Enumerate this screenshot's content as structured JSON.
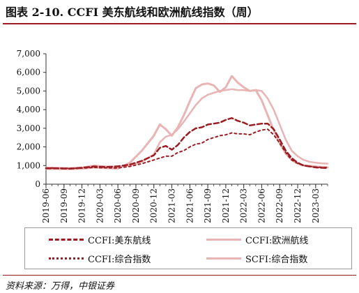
{
  "figure": {
    "title": "图表 2-10. CCFI 美东航线和欧洲航线指数（周）",
    "source": "资料来源：万得，中银证券"
  },
  "chart_data": {
    "type": "line",
    "ylim": [
      0,
      7000
    ],
    "yticks": [
      "0",
      "1,000",
      "2,000",
      "3,000",
      "4,000",
      "5,000",
      "6,000",
      "7,000"
    ],
    "xticks": [
      "2019-06",
      "2019-09",
      "2019-12",
      "2020-03",
      "2020-06",
      "2020-09",
      "2020-12",
      "2021-03",
      "2021-06",
      "2021-09",
      "2021-12",
      "2022-03",
      "2022-06",
      "2022-09",
      "2022-12",
      "2023-03"
    ],
    "x": [
      "2019-06",
      "2019-08",
      "2019-10",
      "2019-12",
      "2020-02",
      "2020-04",
      "2020-06",
      "2020-08",
      "2020-10",
      "2020-12",
      "2021-01",
      "2021-02",
      "2021-03",
      "2021-04",
      "2021-05",
      "2021-06",
      "2021-07",
      "2021-08",
      "2021-09",
      "2021-10",
      "2021-11",
      "2021-12",
      "2022-01",
      "2022-02",
      "2022-03",
      "2022-04",
      "2022-05",
      "2022-06",
      "2022-07",
      "2022-08",
      "2022-09",
      "2022-10",
      "2022-11",
      "2022-12",
      "2023-01",
      "2023-02",
      "2023-03",
      "2023-04",
      "2023-05"
    ],
    "legend_position": "bottom-boxed",
    "series": [
      {
        "name": "CCFI:美东航线",
        "color": "#9b1c22",
        "style": "dashed",
        "width": 2.5,
        "values": [
          850,
          850,
          830,
          880,
          950,
          920,
          960,
          1050,
          1250,
          1550,
          1950,
          2050,
          1850,
          2100,
          2500,
          2800,
          3000,
          3050,
          3200,
          3250,
          3300,
          3450,
          3550,
          3400,
          3300,
          3150,
          3200,
          3250,
          3250,
          2950,
          2400,
          1800,
          1400,
          1150,
          1000,
          950,
          900,
          880,
          870
        ]
      },
      {
        "name": "CCFI:欧洲航线",
        "color": "#e8b4b4",
        "style": "solid",
        "width": 2.5,
        "values": [
          900,
          880,
          860,
          900,
          1000,
          950,
          930,
          1000,
          1200,
          1600,
          2250,
          2550,
          2650,
          2950,
          3350,
          3800,
          4250,
          4600,
          4800,
          4900,
          5000,
          5050,
          5100,
          5050,
          5050,
          5000,
          5050,
          5000,
          4600,
          4000,
          3200,
          2400,
          1800,
          1500,
          1300,
          1200,
          1150,
          1120,
          1100
        ]
      },
      {
        "name": "CCFI:综合指数",
        "color": "#9b1c22",
        "style": "dotted",
        "width": 2,
        "values": [
          870,
          860,
          850,
          860,
          900,
          880,
          870,
          950,
          1100,
          1300,
          1400,
          1500,
          1500,
          1700,
          1800,
          2000,
          2150,
          2200,
          2400,
          2500,
          2600,
          2650,
          2750,
          2700,
          2700,
          2650,
          2800,
          2900,
          2950,
          2650,
          2200,
          1700,
          1300,
          1120,
          1000,
          950,
          920,
          900,
          890
        ]
      },
      {
        "name": "SCFI:综合指数",
        "color": "#e8b4b4",
        "style": "solid",
        "width": 3,
        "values": [
          820,
          820,
          810,
          830,
          900,
          860,
          840,
          1150,
          1800,
          2600,
          3200,
          2950,
          2600,
          3050,
          3700,
          4450,
          5150,
          5350,
          5400,
          5300,
          4950,
          5200,
          5800,
          5450,
          5200,
          5000,
          5050,
          4500,
          3700,
          2900,
          2200,
          1650,
          1300,
          1100,
          1000,
          980,
          950,
          920,
          900
        ]
      }
    ]
  }
}
